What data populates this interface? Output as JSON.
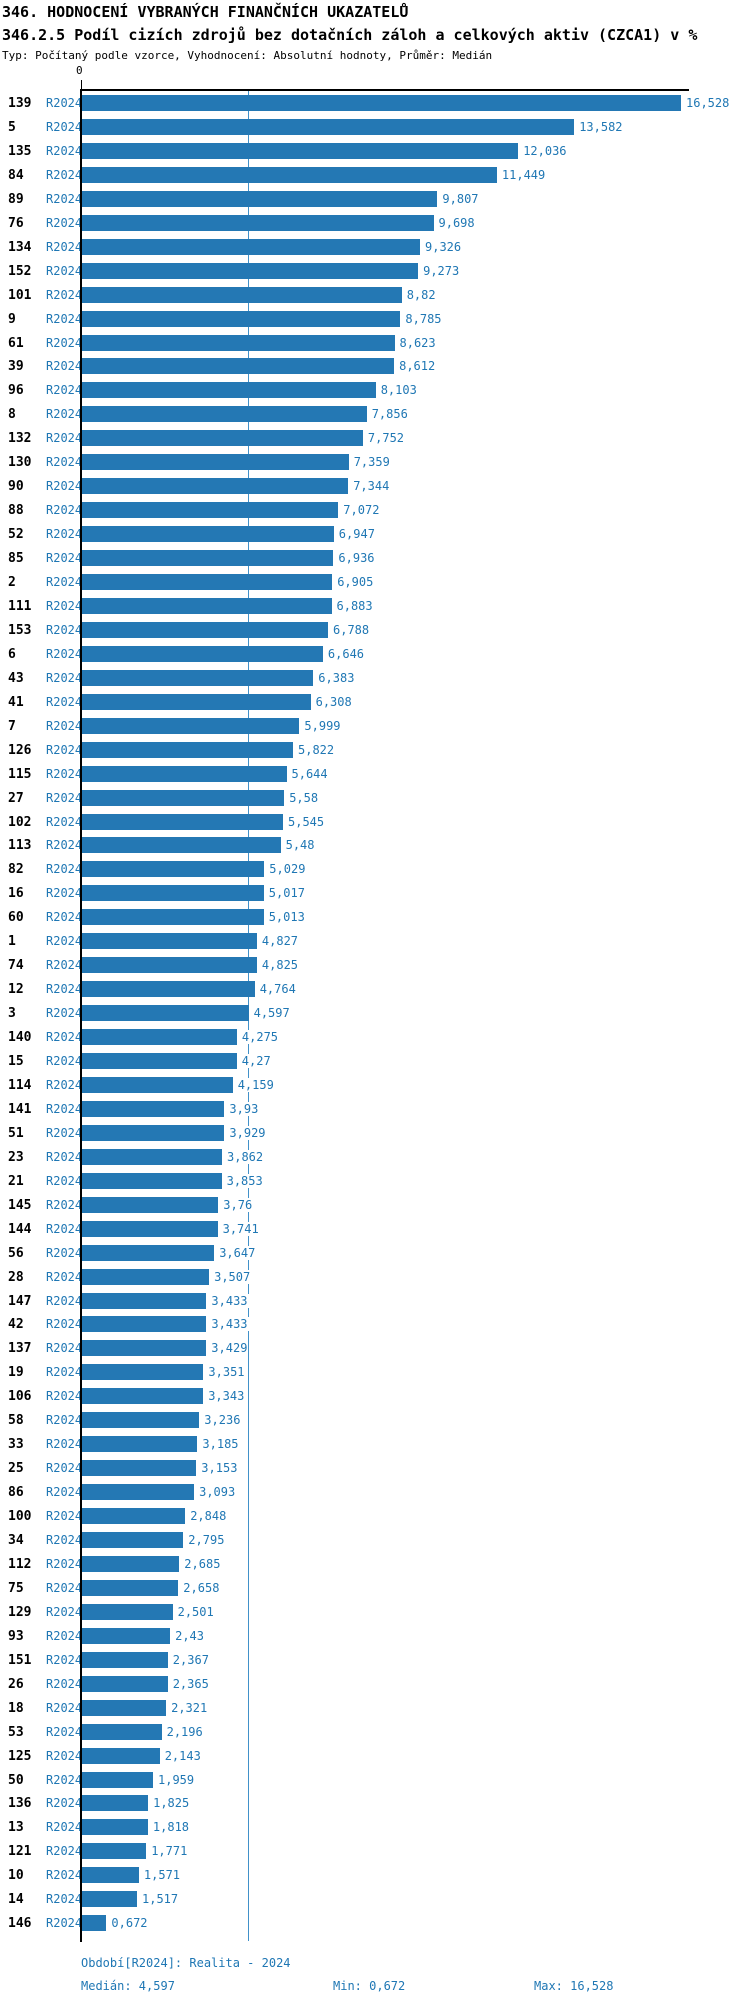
{
  "header": {
    "title": "346. HODNOCENÍ VYBRANÝCH FINANČNÍCH UKAZATELŮ",
    "subtitle": "346.2.5 Podíl cizích zdrojů bez dotačních záloh  a celkových aktiv (CZCA1) v %",
    "meta": "Typ: Počítaný podle vzorce, Vyhodnocení: Absolutní hodnoty, Průměr: Medián"
  },
  "chart_data": {
    "type": "bar",
    "orientation": "horizontal",
    "title": "346.2.5 Podíl cizích zdrojů bez dotačních záloh  a celkových aktiv (CZCA1) v %",
    "series_name": "R2024",
    "axis": {
      "xmin": 0,
      "xmax": 16.528,
      "zero_label": "0",
      "grid": false
    },
    "median": 4.597,
    "colors": {
      "bar": "#2478b4",
      "value_text": "#1f77b4",
      "period_text": "#1f77b4",
      "median_line": "#4191c9",
      "axis": "#000000",
      "footer_text": "#1f77b4"
    },
    "rows": [
      {
        "id": "139",
        "period": "R2024",
        "value": 16.528,
        "label": "16,528"
      },
      {
        "id": "5",
        "period": "R2024",
        "value": 13.582,
        "label": "13,582"
      },
      {
        "id": "135",
        "period": "R2024",
        "value": 12.036,
        "label": "12,036"
      },
      {
        "id": "84",
        "period": "R2024",
        "value": 11.449,
        "label": "11,449"
      },
      {
        "id": "89",
        "period": "R2024",
        "value": 9.807,
        "label": "9,807"
      },
      {
        "id": "76",
        "period": "R2024",
        "value": 9.698,
        "label": "9,698"
      },
      {
        "id": "134",
        "period": "R2024",
        "value": 9.326,
        "label": "9,326"
      },
      {
        "id": "152",
        "period": "R2024",
        "value": 9.273,
        "label": "9,273"
      },
      {
        "id": "101",
        "period": "R2024",
        "value": 8.82,
        "label": "8,82"
      },
      {
        "id": "9",
        "period": "R2024",
        "value": 8.785,
        "label": "8,785"
      },
      {
        "id": "61",
        "period": "R2024",
        "value": 8.623,
        "label": "8,623"
      },
      {
        "id": "39",
        "period": "R2024",
        "value": 8.612,
        "label": "8,612"
      },
      {
        "id": "96",
        "period": "R2024",
        "value": 8.103,
        "label": "8,103"
      },
      {
        "id": "8",
        "period": "R2024",
        "value": 7.856,
        "label": "7,856"
      },
      {
        "id": "132",
        "period": "R2024",
        "value": 7.752,
        "label": "7,752"
      },
      {
        "id": "130",
        "period": "R2024",
        "value": 7.359,
        "label": "7,359"
      },
      {
        "id": "90",
        "period": "R2024",
        "value": 7.344,
        "label": "7,344"
      },
      {
        "id": "88",
        "period": "R2024",
        "value": 7.072,
        "label": "7,072"
      },
      {
        "id": "52",
        "period": "R2024",
        "value": 6.947,
        "label": "6,947"
      },
      {
        "id": "85",
        "period": "R2024",
        "value": 6.936,
        "label": "6,936"
      },
      {
        "id": "2",
        "period": "R2024",
        "value": 6.905,
        "label": "6,905"
      },
      {
        "id": "111",
        "period": "R2024",
        "value": 6.883,
        "label": "6,883"
      },
      {
        "id": "153",
        "period": "R2024",
        "value": 6.788,
        "label": "6,788"
      },
      {
        "id": "6",
        "period": "R2024",
        "value": 6.646,
        "label": "6,646"
      },
      {
        "id": "43",
        "period": "R2024",
        "value": 6.383,
        "label": "6,383"
      },
      {
        "id": "41",
        "period": "R2024",
        "value": 6.308,
        "label": "6,308"
      },
      {
        "id": "7",
        "period": "R2024",
        "value": 5.999,
        "label": "5,999"
      },
      {
        "id": "126",
        "period": "R2024",
        "value": 5.822,
        "label": "5,822"
      },
      {
        "id": "115",
        "period": "R2024",
        "value": 5.644,
        "label": "5,644"
      },
      {
        "id": "27",
        "period": "R2024",
        "value": 5.58,
        "label": "5,58"
      },
      {
        "id": "102",
        "period": "R2024",
        "value": 5.545,
        "label": "5,545"
      },
      {
        "id": "113",
        "period": "R2024",
        "value": 5.48,
        "label": "5,48"
      },
      {
        "id": "82",
        "period": "R2024",
        "value": 5.029,
        "label": "5,029"
      },
      {
        "id": "16",
        "period": "R2024",
        "value": 5.017,
        "label": "5,017"
      },
      {
        "id": "60",
        "period": "R2024",
        "value": 5.013,
        "label": "5,013"
      },
      {
        "id": "1",
        "period": "R2024",
        "value": 4.827,
        "label": "4,827"
      },
      {
        "id": "74",
        "period": "R2024",
        "value": 4.825,
        "label": "4,825"
      },
      {
        "id": "12",
        "period": "R2024",
        "value": 4.764,
        "label": "4,764"
      },
      {
        "id": "3",
        "period": "R2024",
        "value": 4.597,
        "label": "4,597"
      },
      {
        "id": "140",
        "period": "R2024",
        "value": 4.275,
        "label": "4,275"
      },
      {
        "id": "15",
        "period": "R2024",
        "value": 4.27,
        "label": "4,27"
      },
      {
        "id": "114",
        "period": "R2024",
        "value": 4.159,
        "label": "4,159"
      },
      {
        "id": "141",
        "period": "R2024",
        "value": 3.93,
        "label": "3,93"
      },
      {
        "id": "51",
        "period": "R2024",
        "value": 3.929,
        "label": "3,929"
      },
      {
        "id": "23",
        "period": "R2024",
        "value": 3.862,
        "label": "3,862"
      },
      {
        "id": "21",
        "period": "R2024",
        "value": 3.853,
        "label": "3,853"
      },
      {
        "id": "145",
        "period": "R2024",
        "value": 3.76,
        "label": "3,76"
      },
      {
        "id": "144",
        "period": "R2024",
        "value": 3.741,
        "label": "3,741"
      },
      {
        "id": "56",
        "period": "R2024",
        "value": 3.647,
        "label": "3,647"
      },
      {
        "id": "28",
        "period": "R2024",
        "value": 3.507,
        "label": "3,507"
      },
      {
        "id": "147",
        "period": "R2024",
        "value": 3.433,
        "label": "3,433"
      },
      {
        "id": "42",
        "period": "R2024",
        "value": 3.433,
        "label": "3,433"
      },
      {
        "id": "137",
        "period": "R2024",
        "value": 3.429,
        "label": "3,429"
      },
      {
        "id": "19",
        "period": "R2024",
        "value": 3.351,
        "label": "3,351"
      },
      {
        "id": "106",
        "period": "R2024",
        "value": 3.343,
        "label": "3,343"
      },
      {
        "id": "58",
        "period": "R2024",
        "value": 3.236,
        "label": "3,236"
      },
      {
        "id": "33",
        "period": "R2024",
        "value": 3.185,
        "label": "3,185"
      },
      {
        "id": "25",
        "period": "R2024",
        "value": 3.153,
        "label": "3,153"
      },
      {
        "id": "86",
        "period": "R2024",
        "value": 3.093,
        "label": "3,093"
      },
      {
        "id": "100",
        "period": "R2024",
        "value": 2.848,
        "label": "2,848"
      },
      {
        "id": "34",
        "period": "R2024",
        "value": 2.795,
        "label": "2,795"
      },
      {
        "id": "112",
        "period": "R2024",
        "value": 2.685,
        "label": "2,685"
      },
      {
        "id": "75",
        "period": "R2024",
        "value": 2.658,
        "label": "2,658"
      },
      {
        "id": "129",
        "period": "R2024",
        "value": 2.501,
        "label": "2,501"
      },
      {
        "id": "93",
        "period": "R2024",
        "value": 2.43,
        "label": "2,43"
      },
      {
        "id": "151",
        "period": "R2024",
        "value": 2.367,
        "label": "2,367"
      },
      {
        "id": "26",
        "period": "R2024",
        "value": 2.365,
        "label": "2,365"
      },
      {
        "id": "18",
        "period": "R2024",
        "value": 2.321,
        "label": "2,321"
      },
      {
        "id": "53",
        "period": "R2024",
        "value": 2.196,
        "label": "2,196"
      },
      {
        "id": "125",
        "period": "R2024",
        "value": 2.143,
        "label": "2,143"
      },
      {
        "id": "50",
        "period": "R2024",
        "value": 1.959,
        "label": "1,959"
      },
      {
        "id": "136",
        "period": "R2024",
        "value": 1.825,
        "label": "1,825"
      },
      {
        "id": "13",
        "period": "R2024",
        "value": 1.818,
        "label": "1,818"
      },
      {
        "id": "121",
        "period": "R2024",
        "value": 1.771,
        "label": "1,771"
      },
      {
        "id": "10",
        "period": "R2024",
        "value": 1.571,
        "label": "1,571"
      },
      {
        "id": "14",
        "period": "R2024",
        "value": 1.517,
        "label": "1,517"
      },
      {
        "id": "146",
        "period": "R2024",
        "value": 0.672,
        "label": "0,672"
      }
    ]
  },
  "footer": {
    "period_line": "Období[R2024]: Realita - 2024",
    "median": "Medián: 4,597",
    "min": "Min: 0,672",
    "max": "Max: 16,528"
  }
}
